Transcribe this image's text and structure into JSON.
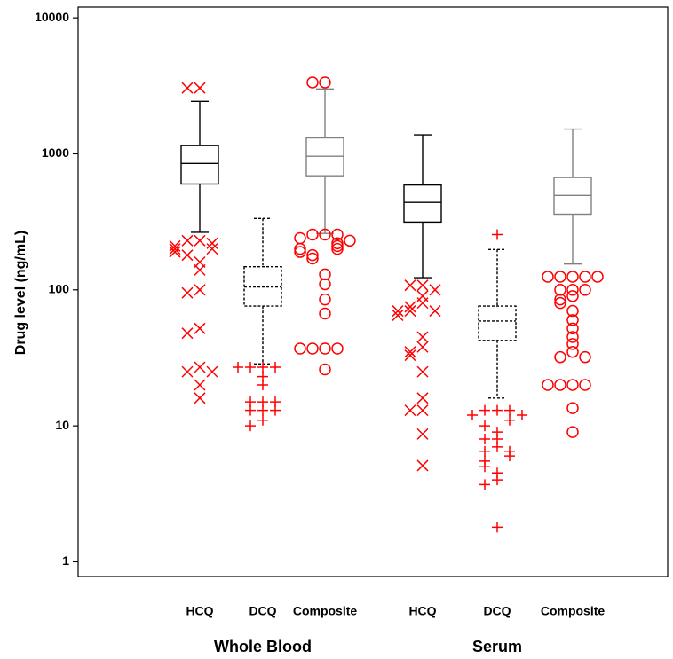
{
  "chart_data": {
    "type": "box",
    "y_label": "Drug level (ng/mL)",
    "log_scale": true,
    "ylim": [
      0.78,
      12000
    ],
    "yticks": [
      1,
      10,
      100,
      1000,
      10000
    ],
    "groups": [
      {
        "name": "Whole Blood",
        "boxes": [
          {
            "name": "HCQ",
            "color": "#000000",
            "dashed": false,
            "marker": "x",
            "outlier_color": "#ff0000",
            "whisker_low": 265,
            "q1": 600,
            "median": 850,
            "q3": 1150,
            "whisker_high": 2430,
            "outliers": [
              3050,
              3050,
              230,
              230,
              220,
              210,
              200,
              200,
              190,
              180,
              160,
              140,
              100,
              95,
              52,
              48,
              27,
              25,
              25,
              20,
              16
            ]
          },
          {
            "name": "DCQ",
            "color": "#000000",
            "dashed": true,
            "marker": "plus",
            "outlier_color": "#ff0000",
            "whisker_low": 28.5,
            "q1": 76,
            "median": 105,
            "q3": 148,
            "whisker_high": 335,
            "outliers": [
              27,
              27,
              27,
              27,
              23,
              20,
              15,
              15,
              15,
              13,
              13,
              13,
              11,
              10
            ]
          },
          {
            "name": "Composite",
            "color": "#808080",
            "dashed": false,
            "marker": "circle",
            "outlier_color": "#ff0000",
            "whisker_low": 260,
            "q1": 690,
            "median": 960,
            "q3": 1310,
            "whisker_high": 3000,
            "outliers": [
              3350,
              3350,
              255,
              255,
              255,
              240,
              230,
              220,
              210,
              200,
              200,
              190,
              180,
              170,
              130,
              110,
              85,
              67,
              37,
              37,
              37,
              37,
              26
            ]
          }
        ]
      },
      {
        "name": "Serum",
        "boxes": [
          {
            "name": "HCQ",
            "color": "#000000",
            "dashed": false,
            "marker": "x",
            "outlier_color": "#ff0000",
            "whisker_low": 123,
            "q1": 315,
            "median": 440,
            "q3": 590,
            "whisker_high": 1380,
            "outliers": [
              108,
              108,
              100,
              90,
              80,
              75,
              70,
              70,
              70,
              65,
              45,
              38,
              35,
              33,
              25,
              16,
              13,
              13,
              8.7,
              5.1
            ]
          },
          {
            "name": "DCQ",
            "color": "#000000",
            "dashed": true,
            "marker": "plus",
            "outlier_color": "#ff0000",
            "whisker_low": 16,
            "q1": 42.5,
            "median": 59,
            "q3": 76,
            "whisker_high": 198,
            "outliers": [
              255,
              13,
              13,
              13,
              12,
              12,
              11,
              10,
              9,
              8,
              8,
              7,
              6.5,
              6.5,
              6,
              5.5,
              5,
              4.5,
              4,
              3.7,
              1.8
            ]
          },
          {
            "name": "Composite",
            "color": "#808080",
            "dashed": false,
            "marker": "circle",
            "outlier_color": "#ff0000",
            "whisker_low": 155,
            "q1": 360,
            "median": 495,
            "q3": 670,
            "whisker_high": 1520,
            "outliers": [
              125,
              125,
              125,
              125,
              125,
              100,
              100,
              100,
              90,
              85,
              80,
              70,
              60,
              52,
              45,
              40,
              35,
              32,
              32,
              20,
              20,
              20,
              20,
              13.5,
              9
            ]
          }
        ]
      }
    ]
  }
}
